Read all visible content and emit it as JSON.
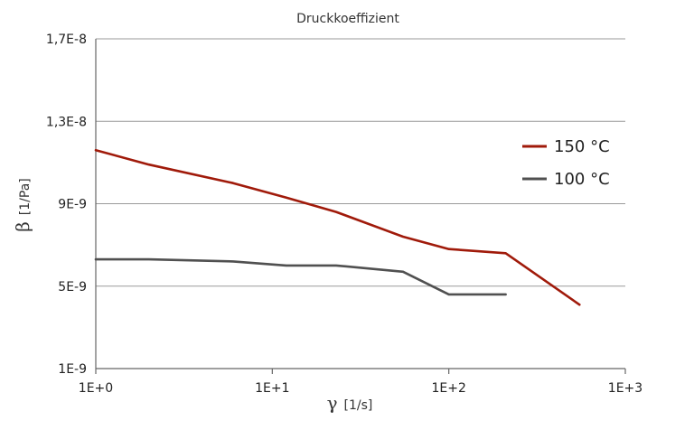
{
  "chart_data": {
    "type": "line",
    "title": "Druckkoeffizient",
    "xlabel": {
      "symbol": "γ",
      "unit": "[1/s]"
    },
    "ylabel": {
      "symbol": "β",
      "unit": "[1/Pa]"
    },
    "x_scale": "log",
    "xlim": [
      1,
      1000
    ],
    "ylim": [
      1e-09,
      1.7e-08
    ],
    "x_ticks": [
      {
        "value": 1,
        "label": "1E+0"
      },
      {
        "value": 10,
        "label": "1E+1"
      },
      {
        "value": 100,
        "label": "1E+2"
      },
      {
        "value": 1000,
        "label": "1E+3"
      }
    ],
    "y_ticks": [
      {
        "value": 1e-09,
        "label": "1E-9"
      },
      {
        "value": 5e-09,
        "label": "5E-9"
      },
      {
        "value": 9e-09,
        "label": "9E-9"
      },
      {
        "value": 1.3e-08,
        "label": "1,3E-8"
      },
      {
        "value": 1.7e-08,
        "label": "1,7E-8"
      }
    ],
    "grid": "horizontal",
    "legend_position": "right",
    "series": [
      {
        "name": "150 °C",
        "color": "#a01a0a",
        "x": [
          1,
          2,
          6,
          12,
          23,
          55,
          100,
          210,
          550
        ],
        "y": [
          1.16e-08,
          1.09e-08,
          1e-08,
          9.3e-09,
          8.6e-09,
          7.4e-09,
          6.8e-09,
          6.6e-09,
          4.1e-09
        ]
      },
      {
        "name": "100 °C",
        "color": "#505050",
        "x": [
          1,
          2,
          6,
          12,
          23,
          55,
          100,
          210
        ],
        "y": [
          6.3e-09,
          6.3e-09,
          6.2e-09,
          6e-09,
          6e-09,
          5.7e-09,
          4.6e-09,
          4.6e-09
        ]
      }
    ]
  }
}
